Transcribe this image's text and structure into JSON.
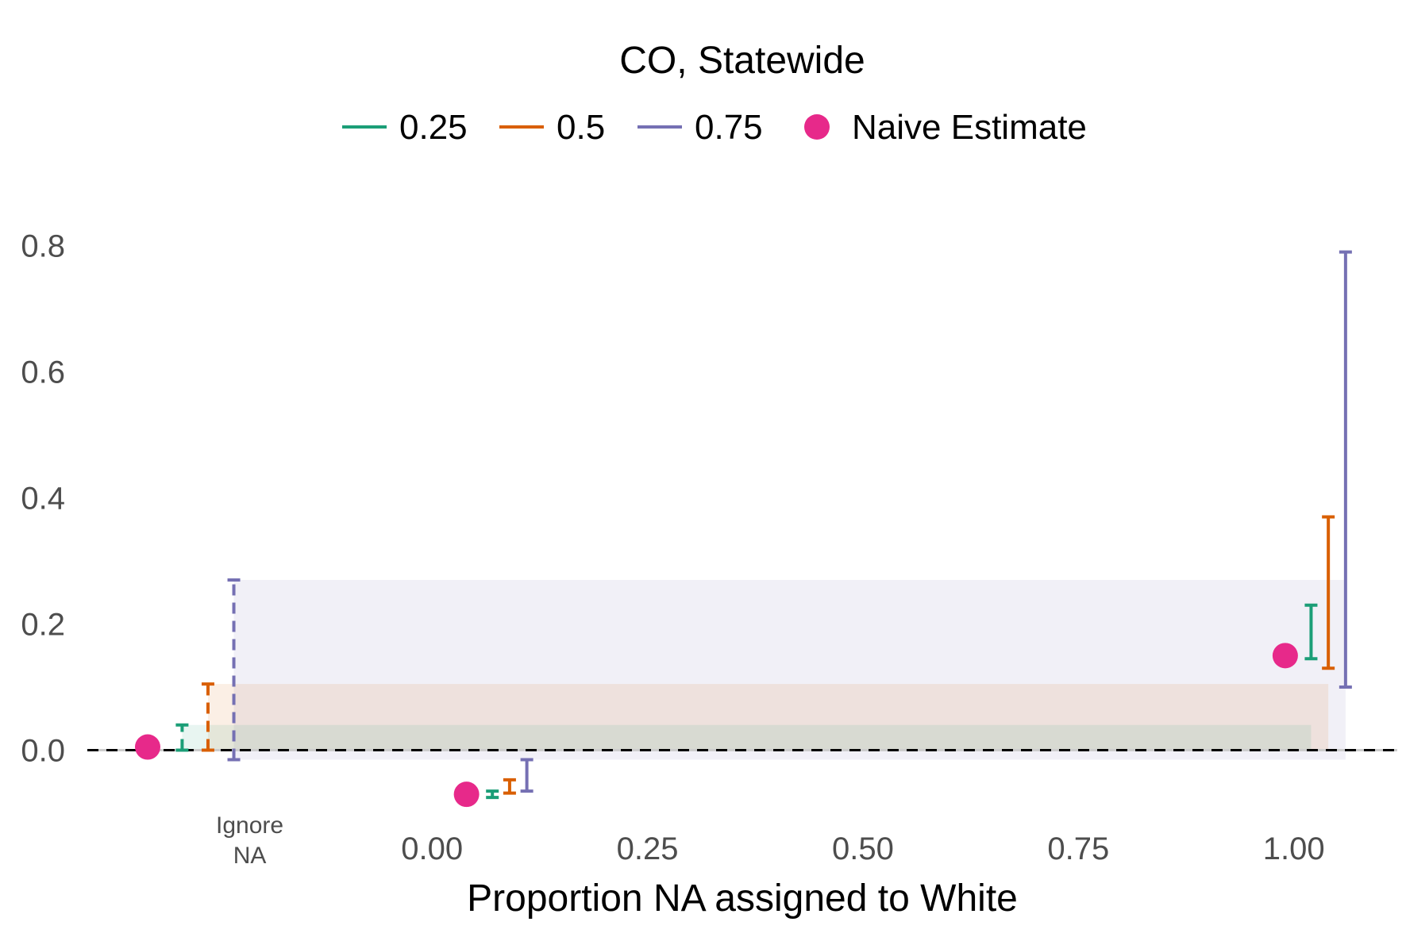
{
  "chart_data": {
    "type": "errorbar",
    "title": "CO, Statewide",
    "xlabel": "Proportion NA assigned to White",
    "ylabel": "",
    "xlim": [
      -0.4,
      1.12
    ],
    "ylim": [
      -0.1,
      0.85
    ],
    "x_ticks": [
      0.0,
      0.25,
      0.5,
      0.75,
      1.0
    ],
    "x_tick_labels": [
      "0.00",
      "0.25",
      "0.50",
      "0.75",
      "1.00"
    ],
    "y_ticks": [
      0.0,
      0.2,
      0.4,
      0.6,
      0.8
    ],
    "y_tick_labels": [
      "0.0",
      "0.2",
      "0.4",
      "0.6",
      "0.8"
    ],
    "extra_x_category": {
      "label_lines": [
        "Ignore",
        "NA"
      ],
      "x": -0.23
    },
    "legend": {
      "placement": "top",
      "entries": [
        {
          "label": "0.25",
          "color": "#1b9e77",
          "kind": "line"
        },
        {
          "label": "0.5",
          "color": "#d95f02",
          "kind": "line"
        },
        {
          "label": "0.75",
          "color": "#7570b3",
          "kind": "line"
        },
        {
          "label": "Naive Estimate",
          "color": "#e7298a",
          "kind": "point"
        }
      ]
    },
    "reference_line": {
      "y": 0,
      "style": "dashed",
      "color": "#000000"
    },
    "series": [
      {
        "name": "0.25",
        "color": "#1b9e77",
        "intervals": [
          {
            "x": -0.29,
            "low": 0.0,
            "high": 0.04,
            "dashed": true
          },
          {
            "x": 0.07,
            "low": -0.075,
            "high": -0.065,
            "dashed": false
          },
          {
            "x": 1.02,
            "low": 0.145,
            "high": 0.23,
            "dashed": false
          }
        ]
      },
      {
        "name": "0.5",
        "color": "#d95f02",
        "intervals": [
          {
            "x": -0.26,
            "low": 0.0,
            "high": 0.105,
            "dashed": true
          },
          {
            "x": 0.09,
            "low": -0.068,
            "high": -0.047,
            "dashed": false
          },
          {
            "x": 1.04,
            "low": 0.13,
            "high": 0.37,
            "dashed": false
          }
        ]
      },
      {
        "name": "0.75",
        "color": "#7570b3",
        "intervals": [
          {
            "x": -0.23,
            "low": -0.015,
            "high": 0.27,
            "dashed": true
          },
          {
            "x": 0.11,
            "low": -0.065,
            "high": -0.015,
            "dashed": false
          },
          {
            "x": 1.06,
            "low": 0.1,
            "high": 0.79,
            "dashed": false
          }
        ]
      }
    ],
    "naive_estimates": [
      {
        "x": -0.33,
        "y": 0.005
      },
      {
        "x": 0.04,
        "y": -0.07
      },
      {
        "x": 0.99,
        "y": 0.15
      }
    ],
    "bands": [
      {
        "color": "#7570b3",
        "x0": -0.23,
        "x1": 1.06,
        "low": -0.015,
        "high": 0.27,
        "opacity": 0.1
      },
      {
        "color": "#d95f02",
        "x0": -0.26,
        "x1": 1.04,
        "low": 0.0,
        "high": 0.105,
        "opacity": 0.1
      },
      {
        "color": "#1b9e77",
        "x0": -0.29,
        "x1": 1.02,
        "low": 0.0,
        "high": 0.04,
        "opacity": 0.1
      }
    ]
  }
}
